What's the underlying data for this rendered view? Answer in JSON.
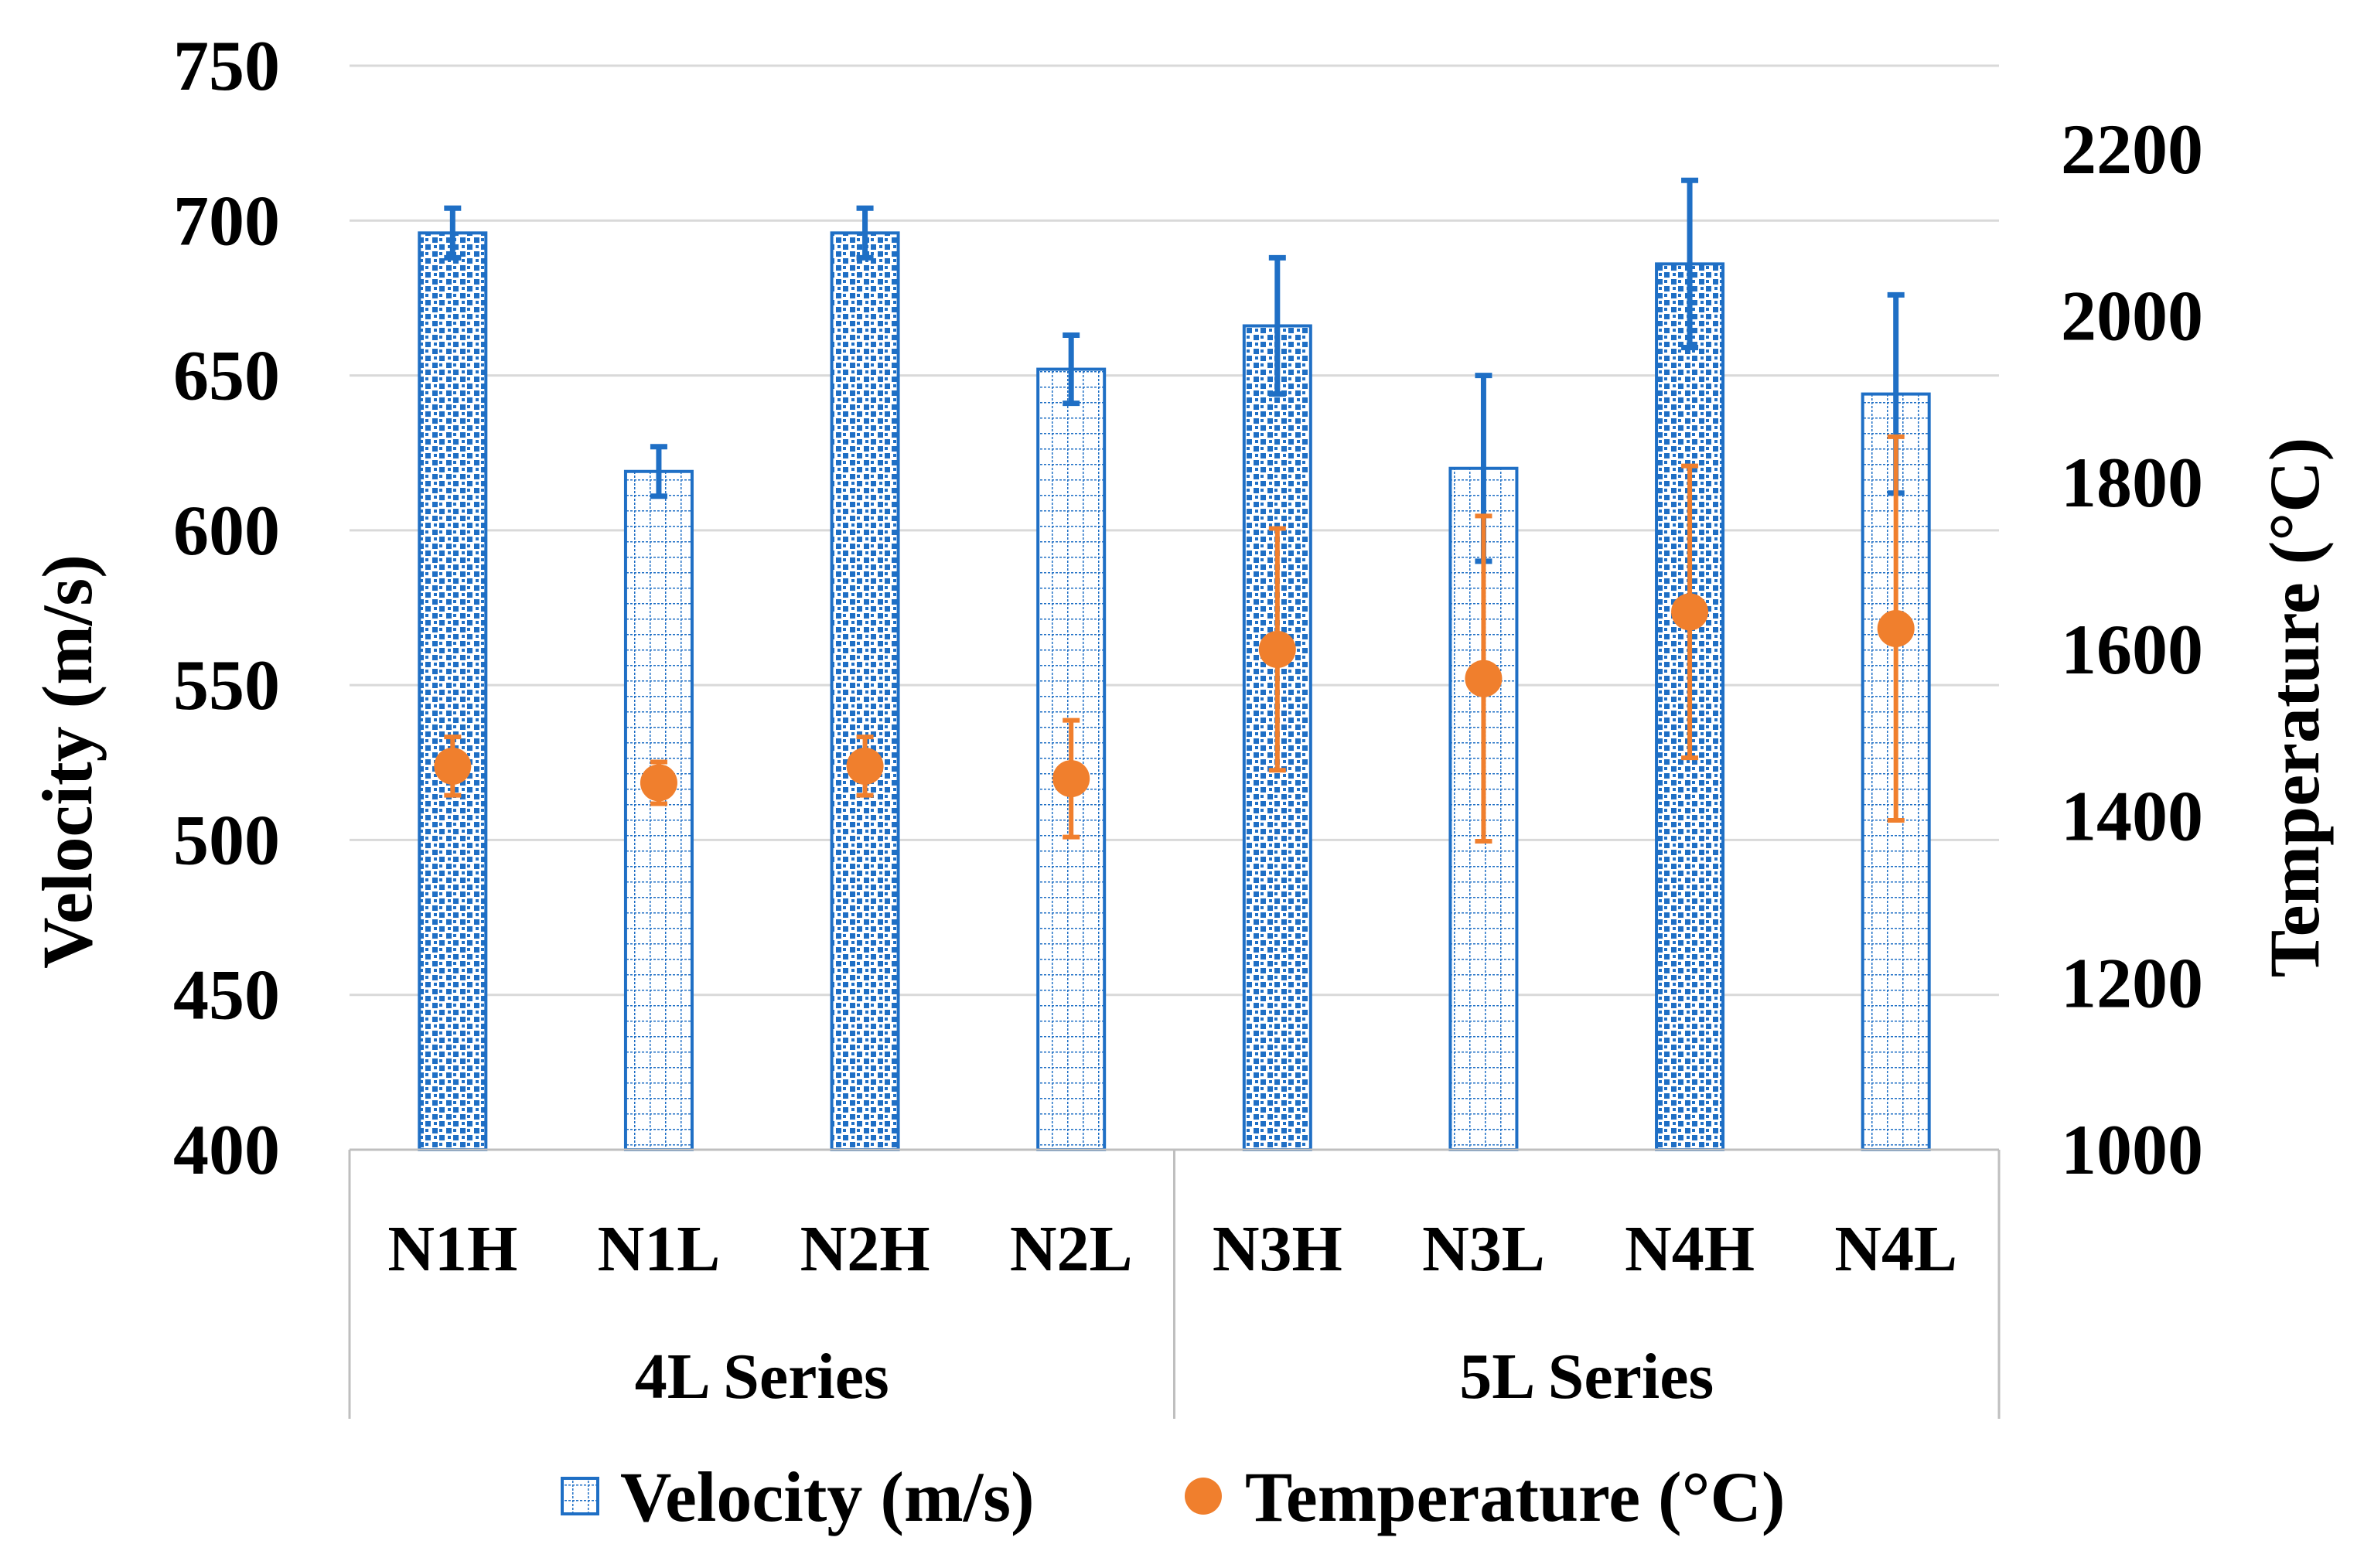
{
  "chart_data": {
    "type": "bar",
    "categories": [
      "N1H",
      "N1L",
      "N2H",
      "N2L",
      "N3H",
      "N3L",
      "N4H",
      "N4L"
    ],
    "groups": [
      {
        "label": "4L Series",
        "categories": [
          "N1H",
          "N1L",
          "N2H",
          "N2L"
        ]
      },
      {
        "label": "5L Series",
        "categories": [
          "N3H",
          "N3L",
          "N4H",
          "N4L"
        ]
      }
    ],
    "series": [
      {
        "name": "Velocity (m/s)",
        "kind": "bar",
        "axis": "left",
        "values": [
          696,
          619,
          696,
          652,
          666,
          620,
          686,
          644
        ],
        "errors": [
          8,
          8,
          8,
          11,
          22,
          30,
          27,
          32
        ],
        "patterns": [
          "dots",
          "grid",
          "dots",
          "grid",
          "dots",
          "grid",
          "dots",
          "grid"
        ],
        "color": "#1F6FC5"
      },
      {
        "name": "Temperature (°C)",
        "kind": "scatter",
        "axis": "right",
        "values": [
          1460,
          1440,
          1460,
          1445,
          1600,
          1565,
          1645,
          1625
        ],
        "errors": [
          35,
          25,
          35,
          70,
          145,
          195,
          175,
          230
        ],
        "color": "#F07F2D"
      }
    ],
    "left_axis": {
      "label": "Velocity (m/s)",
      "min": 400,
      "max": 750,
      "step": 50,
      "ticks": [
        "400",
        "450",
        "500",
        "550",
        "600",
        "650",
        "700",
        "750"
      ]
    },
    "right_axis": {
      "label": "Temperature (°C)",
      "min": 1000,
      "max": 2300,
      "step": 200,
      "ticks": [
        "1000",
        "1200",
        "1400",
        "1600",
        "1800",
        "2000",
        "2200"
      ]
    },
    "grid": true,
    "legend": "bottom",
    "colors": {
      "bar": "#1F6FC5",
      "marker": "#F07F2D",
      "grid": "#D9D9D9",
      "frame": "#BFBFBF"
    }
  }
}
